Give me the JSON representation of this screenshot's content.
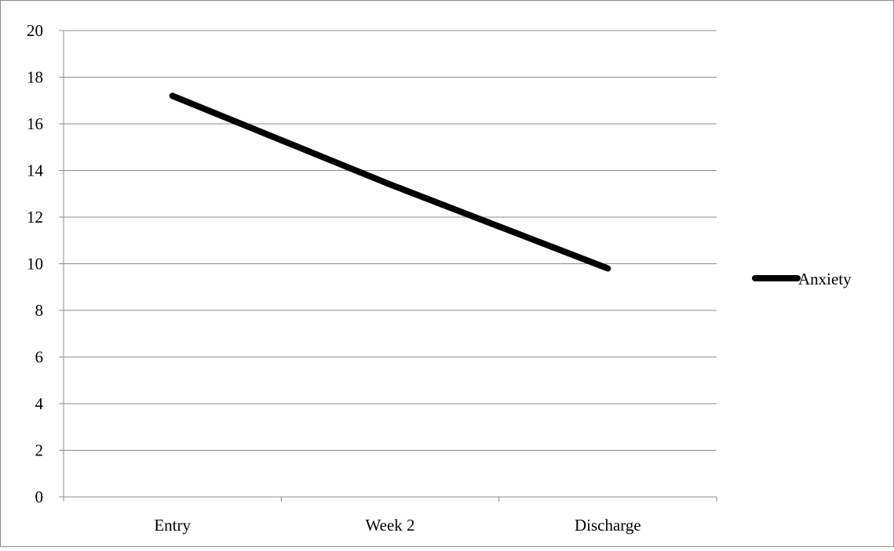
{
  "chart_data": {
    "type": "line",
    "categories": [
      "Entry",
      "Week 2",
      "Discharge"
    ],
    "series": [
      {
        "name": "Anxiety",
        "values": [
          17.2,
          13.4,
          9.8
        ],
        "color": "#000000"
      }
    ],
    "ylim": [
      0,
      20
    ],
    "yticks": [
      0,
      2,
      4,
      6,
      8,
      10,
      12,
      14,
      16,
      18,
      20
    ],
    "grid": true,
    "legend_position": "right",
    "title": "",
    "xlabel": "",
    "ylabel": ""
  }
}
